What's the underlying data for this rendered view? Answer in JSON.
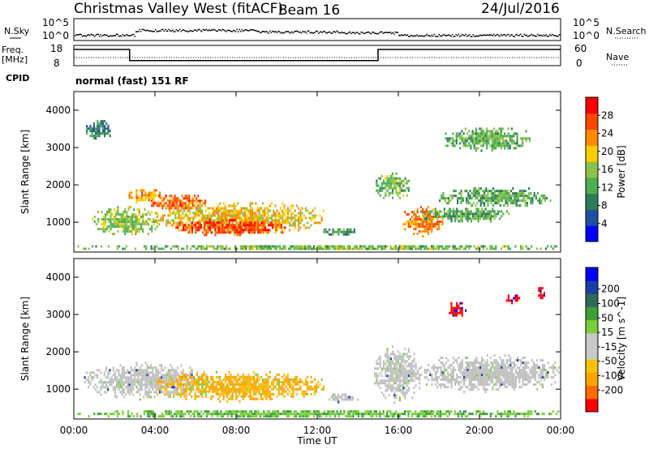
{
  "header": {
    "station": "Christmas Valley West (fitACF)",
    "beam": "Beam 16",
    "date": "24/Jul/2016"
  },
  "strip_labels": {
    "nsky": "N.Sky",
    "freq": "Freq.",
    "freq_unit": "[MHz]",
    "cpid": "CPID",
    "nsearch": "N.Search",
    "nave": "Nave",
    "cpid_text": "normal (fast) 151 RF"
  },
  "strip_ticks": {
    "noise_left_top": "10^5",
    "noise_left_bottom": "10^0",
    "noise_right_top": "10^5",
    "noise_right_bottom": "10^0",
    "freq_top": "18",
    "freq_bottom": "8",
    "nave_top": "60",
    "nave_bottom": "0"
  },
  "colors": {
    "power_scale": [
      "#0000ff",
      "#1e4fa0",
      "#2e7d5a",
      "#4caf50",
      "#8bc34a",
      "#ffcc00",
      "#ff8c00",
      "#ff4500",
      "#ff0000"
    ],
    "velocity_scale": [
      "#ff0000",
      "#ff6a00",
      "#ffa500",
      "#ffc107",
      "#c8c8c8",
      "#c8c8c8",
      "#7ad03a",
      "#3d9e3a",
      "#2e6b5a",
      "#1a3fa0",
      "#0000ff"
    ],
    "velocity_gray": "#c0c0c0"
  },
  "chart_data": [
    {
      "type": "heatmap",
      "panel": "power",
      "ylabel": "Slant Range [km]",
      "yticks": [
        "1000",
        "2000",
        "3000",
        "4000"
      ],
      "ylim": [
        200,
        4500
      ],
      "colorbar_label": "Power [dB]",
      "colorbar_ticks": [
        "4",
        "8",
        "12",
        "16",
        "20",
        "24",
        "28"
      ],
      "clim": [
        0,
        32
      ],
      "blobs": [
        {
          "t": [
            0.9,
            4.2
          ],
          "r": [
            600,
            1500
          ],
          "v": 15
        },
        {
          "t": [
            2.7,
            4.4
          ],
          "r": [
            1500,
            1950
          ],
          "v": 24
        },
        {
          "t": [
            3.8,
            6.5
          ],
          "r": [
            1300,
            1800
          ],
          "v": 26
        },
        {
          "t": [
            4.0,
            12.3
          ],
          "r": [
            650,
            1600
          ],
          "v": 20
        },
        {
          "t": [
            5.0,
            10.5
          ],
          "r": [
            650,
            1150
          ],
          "v": 29
        },
        {
          "t": [
            12.3,
            14.0
          ],
          "r": [
            650,
            900
          ],
          "v": 10
        },
        {
          "t": [
            0.6,
            1.8
          ],
          "r": [
            3150,
            3800
          ],
          "v": 8
        },
        {
          "t": [
            14.8,
            16.5
          ],
          "r": [
            1600,
            2400
          ],
          "v": 14
        },
        {
          "t": [
            16.2,
            18.2
          ],
          "r": [
            600,
            1500
          ],
          "v": 25
        },
        {
          "t": [
            17.0,
            21.5
          ],
          "r": [
            1000,
            1450
          ],
          "v": 12
        },
        {
          "t": [
            18.0,
            23.5
          ],
          "r": [
            1400,
            2000
          ],
          "v": 12
        },
        {
          "t": [
            18.3,
            22.5
          ],
          "r": [
            2900,
            3600
          ],
          "v": 13
        },
        {
          "t": [
            0.0,
            24.0
          ],
          "r": [
            250,
            450
          ],
          "v": 14
        }
      ]
    },
    {
      "type": "heatmap",
      "panel": "velocity",
      "ylabel": "Slant Range [km]",
      "yticks": [
        "1000",
        "2000",
        "3000",
        "4000"
      ],
      "ylim": [
        200,
        4500
      ],
      "colorbar_label": "Velocity [m s^-1]",
      "colorbar_ticks": [
        "-200",
        "-100",
        "-50",
        "-15",
        "15",
        "50",
        "100",
        "200"
      ],
      "clim": [
        -250,
        250
      ],
      "blobs": [
        {
          "t": [
            0.5,
            6.5
          ],
          "r": [
            700,
            1800
          ],
          "v": 0
        },
        {
          "t": [
            4.0,
            12.3
          ],
          "r": [
            650,
            1550
          ],
          "v": -30
        },
        {
          "t": [
            12.3,
            14.0
          ],
          "r": [
            650,
            950
          ],
          "v": 0
        },
        {
          "t": [
            14.8,
            17.0
          ],
          "r": [
            600,
            2300
          ],
          "v": 0
        },
        {
          "t": [
            17.0,
            24.0
          ],
          "r": [
            900,
            2000
          ],
          "v": 0
        },
        {
          "t": [
            18.4,
            19.3
          ],
          "r": [
            2900,
            3400
          ],
          "v": -200
        },
        {
          "t": [
            21.3,
            22.0
          ],
          "r": [
            3300,
            3600
          ],
          "v": -200
        },
        {
          "t": [
            22.8,
            23.2
          ],
          "r": [
            3400,
            3800
          ],
          "v": -200
        },
        {
          "t": [
            0.0,
            24.0
          ],
          "r": [
            250,
            500
          ],
          "v": 30
        }
      ]
    }
  ],
  "x_axis": {
    "ticks": [
      "00:00",
      "04:00",
      "08:00",
      "12:00",
      "16:00",
      "20:00",
      "00:00"
    ],
    "xlim_hours": [
      0,
      24
    ],
    "label": "Time UT"
  },
  "frequency_trace": [
    {
      "from": 0,
      "to": 2.75,
      "mhz": 16
    },
    {
      "from": 2.75,
      "to": 15.0,
      "mhz": 10.5
    },
    {
      "from": 15.0,
      "to": 24,
      "mhz": 16
    }
  ]
}
